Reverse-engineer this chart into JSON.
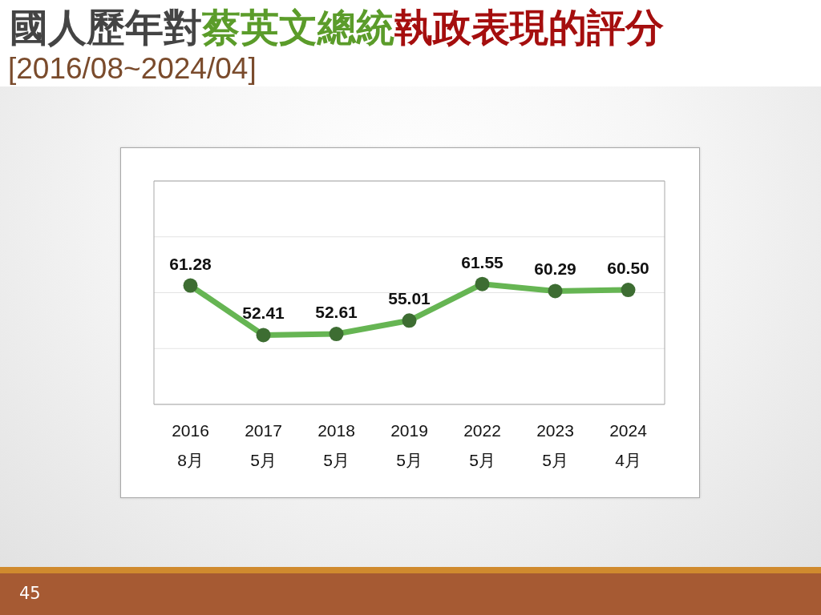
{
  "chart_data": {
    "type": "line",
    "title": "國人歷年對蔡英文總統執政表現的評分",
    "subtitle": "[2016/08~2024/04]",
    "categories": [
      "2016\n8月",
      "2017\n5月",
      "2018\n5月",
      "2019\n5月",
      "2022\n5月",
      "2023\n5月",
      "2024\n4月"
    ],
    "series": [
      {
        "color": "#66b553",
        "values": [
          61.28,
          52.41,
          52.61,
          55.01,
          61.55,
          60.29,
          60.5
        ],
        "value_labels": [
          "61.28",
          "52.41",
          "52.61",
          "55.01",
          "61.55",
          "60.29",
          "60.50"
        ]
      }
    ],
    "ylim": [
      40,
      80
    ],
    "yticks": [
      {
        "value": 40,
        "label": null
      },
      {
        "value": 50,
        "label": null
      },
      {
        "value": 60,
        "label": null
      },
      {
        "value": 70,
        "label": null
      },
      {
        "value": 80,
        "label": null
      }
    ],
    "tick_labels": "x",
    "grid": "y",
    "marker": "circle",
    "annotations": [
      "45"
    ]
  }
}
